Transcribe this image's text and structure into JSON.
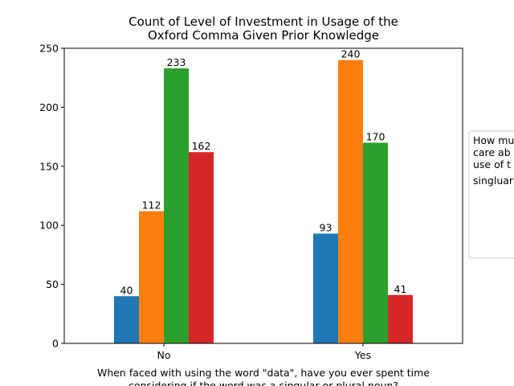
{
  "chart_data": {
    "type": "bar",
    "title": [
      "Count of Level of Investment in Usage of the",
      "Oxford Comma Given Prior Knowledge"
    ],
    "xlabel": [
      "When faced with using the word \"data\", have you ever spent time",
      "considering if the word was a singular or plural noun?"
    ],
    "ylabel": "",
    "categories": [
      "No",
      "Yes"
    ],
    "ylim": [
      0,
      250
    ],
    "yticks": [
      0,
      50,
      100,
      150,
      200,
      250
    ],
    "series": [
      {
        "values": [
          40,
          93
        ],
        "color": "#1f77b4"
      },
      {
        "values": [
          112,
          240
        ],
        "color": "#ff7f0e"
      },
      {
        "values": [
          233,
          170
        ],
        "color": "#2ca02c"
      },
      {
        "values": [
          162,
          41
        ],
        "color": "#d62728"
      }
    ],
    "legend": {
      "placement": "right",
      "title": [
        "How mu",
        "care ab",
        "use of t",
        "singluar"
      ]
    },
    "grid": false
  }
}
